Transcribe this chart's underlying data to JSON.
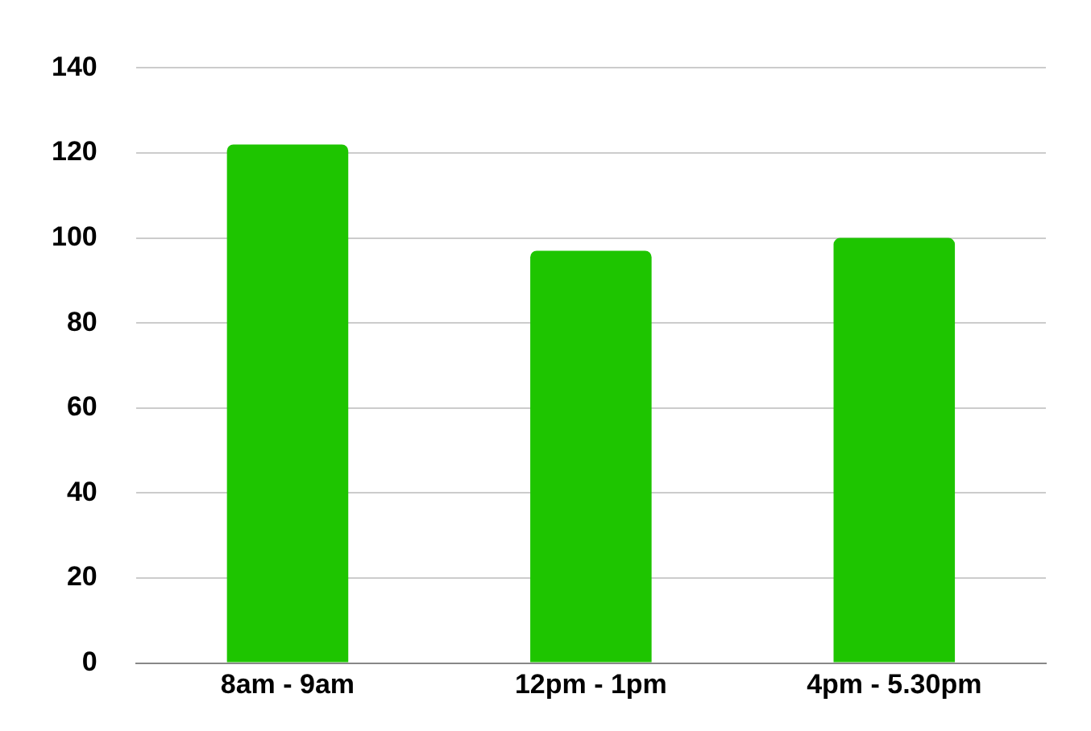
{
  "chart_data": {
    "type": "bar",
    "categories": [
      "8am - 9am",
      "12pm - 1pm",
      "4pm - 5.30pm"
    ],
    "values": [
      122,
      97,
      100
    ],
    "color": "#1ec500",
    "ylim": [
      0,
      140
    ],
    "yticks": [
      0,
      20,
      40,
      60,
      80,
      100,
      120,
      140
    ],
    "grid": "y"
  }
}
